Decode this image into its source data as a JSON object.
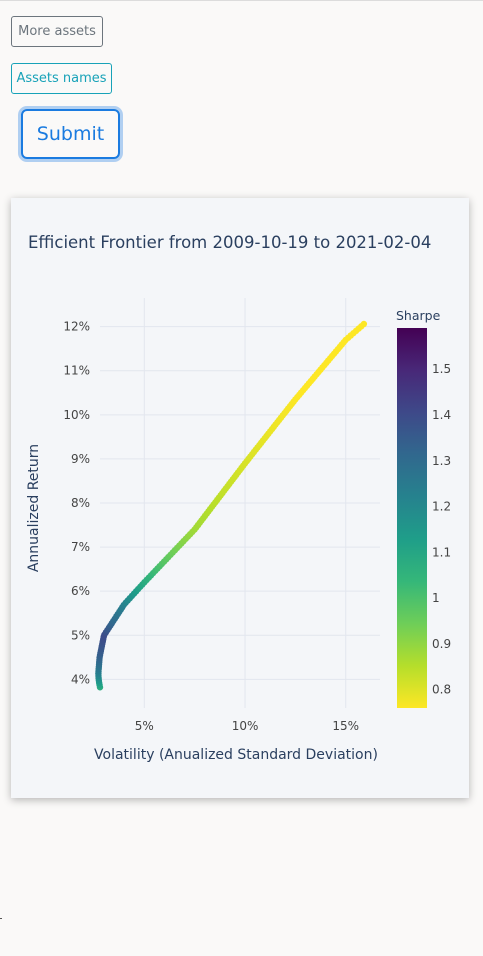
{
  "buttons": {
    "more_assets": "More assets",
    "assets_names": "Assets names",
    "submit": "Submit"
  },
  "chart_data": {
    "type": "scatter",
    "title": "Efficient Frontier from 2009-10-19 to 2021-02-04",
    "xlabel": "Volatility (Anualized Standard Deviation)",
    "ylabel": "Annualized Return",
    "xlim": [
      0.028,
      0.167
    ],
    "ylim": [
      0.0335,
      0.1265
    ],
    "x_ticks": [
      0.05,
      0.1,
      0.15
    ],
    "x_tick_labels": [
      "5%",
      "10%",
      "15%"
    ],
    "y_ticks": [
      0.04,
      0.05,
      0.06,
      0.07,
      0.08,
      0.09,
      0.1,
      0.11,
      0.12
    ],
    "y_tick_labels": [
      "4%",
      "5%",
      "6%",
      "7%",
      "8%",
      "9%",
      "10%",
      "11%",
      "12%"
    ],
    "grid": true,
    "colorbar": {
      "title": "Sharpe",
      "colorscale": "Viridis",
      "reversed": true,
      "range": [
        0.76,
        1.59
      ],
      "ticks": [
        1.5,
        1.4,
        1.3,
        1.2,
        1.1,
        1,
        0.9,
        0.8
      ],
      "tick_labels": [
        "1.5",
        "1.4",
        "1.3",
        "1.2",
        "1.1",
        "1",
        "0.9",
        "0.8"
      ]
    },
    "frontier": {
      "min_return": 0.0382,
      "max_return": 0.1206,
      "min_volatility": 0.0272,
      "return_at_min_volatility": 0.0415,
      "curve_samples": [
        {
          "x": 0.0272,
          "y": 0.0415
        },
        {
          "x": 0.0278,
          "y": 0.045
        },
        {
          "x": 0.03,
          "y": 0.05
        },
        {
          "x": 0.04,
          "y": 0.057
        },
        {
          "x": 0.05,
          "y": 0.062
        },
        {
          "x": 0.075,
          "y": 0.074
        },
        {
          "x": 0.1,
          "y": 0.089
        },
        {
          "x": 0.125,
          "y": 0.1035
        },
        {
          "x": 0.15,
          "y": 0.117
        },
        {
          "x": 0.159,
          "y": 0.1206
        }
      ],
      "point_count": 160
    }
  }
}
